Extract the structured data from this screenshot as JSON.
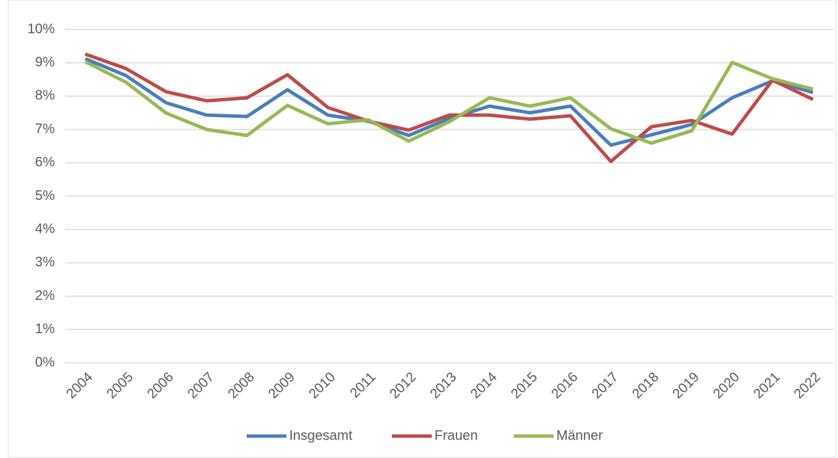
{
  "chart_data": {
    "type": "line",
    "categories": [
      "2004",
      "2005",
      "2006",
      "2007",
      "2008",
      "2009",
      "2010",
      "2011",
      "2012",
      "2013",
      "2014",
      "2015",
      "2016",
      "2017",
      "2018",
      "2019",
      "2020",
      "2021",
      "2022"
    ],
    "series": [
      {
        "name": "Insgesamt",
        "color": "#4a7ebb",
        "values": [
          9.12,
          8.62,
          7.8,
          7.43,
          7.39,
          8.19,
          7.43,
          7.25,
          6.82,
          7.33,
          7.7,
          7.5,
          7.7,
          6.53,
          6.84,
          7.15,
          7.95,
          8.46,
          8.11
        ]
      },
      {
        "name": "Frauen",
        "color": "#be4b48",
        "values": [
          9.26,
          8.83,
          8.13,
          7.86,
          7.95,
          8.64,
          7.66,
          7.25,
          6.98,
          7.43,
          7.43,
          7.31,
          7.41,
          6.04,
          7.08,
          7.27,
          6.86,
          8.48,
          7.9
        ]
      },
      {
        "name": "Männer",
        "color": "#98b954",
        "values": [
          9.03,
          8.42,
          7.49,
          7.0,
          6.82,
          7.72,
          7.17,
          7.29,
          6.65,
          7.23,
          7.95,
          7.7,
          7.95,
          7.02,
          6.59,
          6.96,
          9.01,
          8.52,
          8.21
        ]
      }
    ],
    "ylim": [
      0,
      10
    ],
    "yticks": [
      {
        "value": 0,
        "label": "0%"
      },
      {
        "value": 1,
        "label": "1%"
      },
      {
        "value": 2,
        "label": "2%"
      },
      {
        "value": 3,
        "label": "3%"
      },
      {
        "value": 4,
        "label": "4%"
      },
      {
        "value": 5,
        "label": "5%"
      },
      {
        "value": 6,
        "label": "6%"
      },
      {
        "value": 7,
        "label": "7%"
      },
      {
        "value": 8,
        "label": "8%"
      },
      {
        "value": 9,
        "label": "9%"
      },
      {
        "value": 10,
        "label": "10%"
      }
    ],
    "grid": true,
    "legend": "bottom"
  }
}
